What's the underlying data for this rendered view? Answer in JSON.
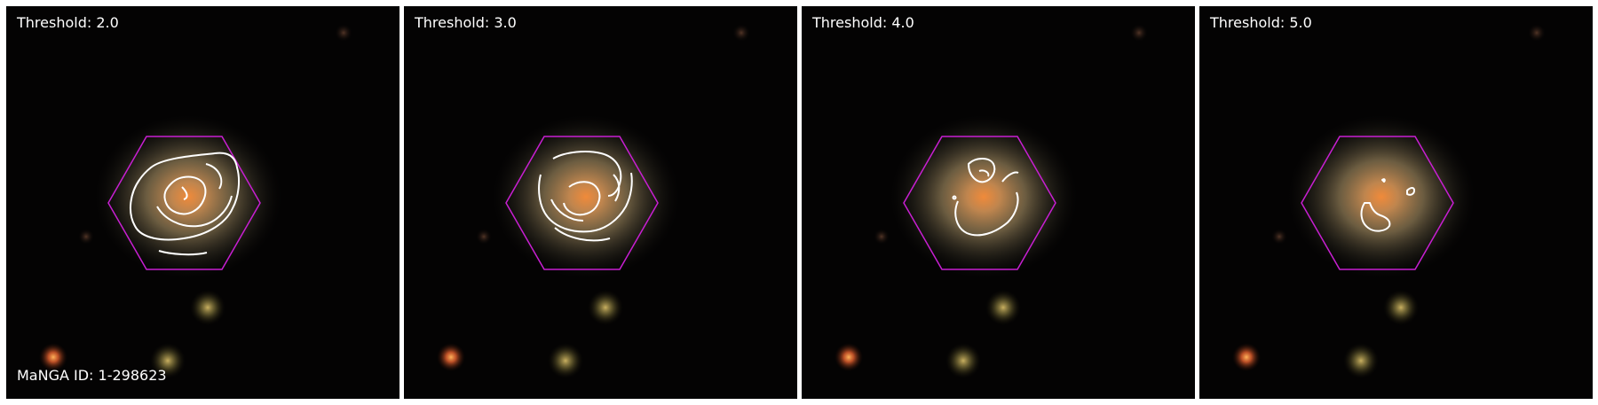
{
  "colors": {
    "background": "#040303",
    "hexagon_outline": "#c81fd2",
    "contour": "#ffffff",
    "text": "#ffffff"
  },
  "panels": [
    {
      "threshold_label": "Threshold: 2.0",
      "id_label": "MaNGA ID: 1-298623"
    },
    {
      "threshold_label": "Threshold: 3.0",
      "id_label": ""
    },
    {
      "threshold_label": "Threshold: 4.0",
      "id_label": ""
    },
    {
      "threshold_label": "Threshold: 5.0",
      "id_label": ""
    }
  ]
}
